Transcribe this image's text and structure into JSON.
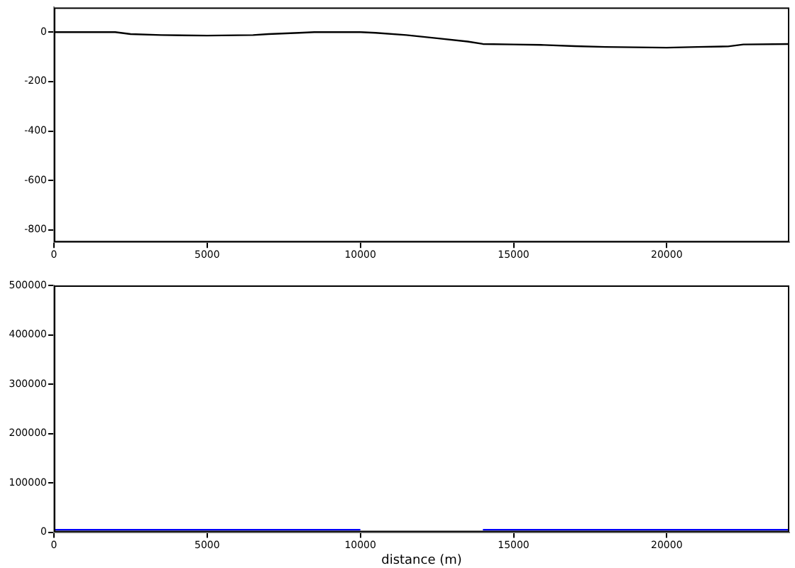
{
  "chart_data": [
    {
      "type": "line",
      "marker": "none",
      "x": [
        0,
        2000,
        2500,
        3500,
        5000,
        6500,
        7000,
        8000,
        8500,
        10000,
        10500,
        11500,
        12500,
        13500,
        14000,
        15000,
        16000,
        17000,
        18000,
        20000,
        21000,
        22000,
        22500,
        24000
      ],
      "series": [
        {
          "color": "#000000",
          "values": [
            0,
            0,
            -8,
            -12,
            -14,
            -12,
            -8,
            -3,
            0,
            0,
            -3,
            -12,
            -25,
            -38,
            -48,
            -50,
            -52,
            -57,
            -60,
            -63,
            -60,
            -58,
            -50,
            -48
          ]
        }
      ],
      "xlim": [
        0,
        24000
      ],
      "xticks": [
        0,
        5000,
        10000,
        15000,
        20000
      ],
      "ylim": [
        -850,
        100
      ],
      "yticks": [
        -800,
        -600,
        -400,
        -200,
        0
      ]
    },
    {
      "type": "line",
      "marker": "none",
      "xlabel": "distance (m)",
      "x": [
        0,
        10000,
        12000,
        14000,
        24000
      ],
      "series": [
        {
          "color": "#0000ff",
          "values": [
            5000,
            5000,
            null,
            5000,
            5000
          ]
        }
      ],
      "xlim": [
        0,
        24000
      ],
      "xticks": [
        0,
        5000,
        10000,
        15000,
        20000
      ],
      "ylim": [
        0,
        500000
      ],
      "yticks": [
        0,
        100000,
        200000,
        300000,
        400000,
        500000
      ]
    }
  ]
}
